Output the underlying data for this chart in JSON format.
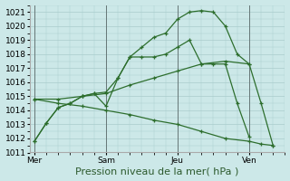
{
  "background_color": "#cce8e8",
  "grid_color": "#aacccc",
  "line_color": "#2d6e2d",
  "ylim": [
    1011,
    1021.5
  ],
  "yticks": [
    1011,
    1012,
    1013,
    1014,
    1015,
    1016,
    1017,
    1018,
    1019,
    1020,
    1021
  ],
  "xlabel": "Pression niveau de la mer( hPa )",
  "xlabel_fontsize": 8,
  "tick_fontsize": 6.5,
  "day_labels": [
    "Mer",
    "Sam",
    "Jeu",
    "Ven"
  ],
  "day_positions": [
    0,
    3,
    6,
    9
  ],
  "vline_positions": [
    0,
    3,
    6,
    9
  ],
  "xlim": [
    -0.2,
    10.5
  ],
  "series": [
    {
      "x": [
        0,
        0.5,
        1,
        1.5,
        2,
        2.5,
        3,
        3.5,
        4,
        4.5,
        5,
        5.5,
        6,
        6.5,
        7,
        7.5,
        8,
        8.5,
        9,
        9.5,
        10
      ],
      "y": [
        1011.8,
        1013.1,
        1014.2,
        1014.5,
        1015.0,
        1015.2,
        1015.3,
        1016.3,
        1017.8,
        1018.5,
        1019.2,
        1019.5,
        1020.5,
        1021.0,
        1021.1,
        1021.0,
        1020.0,
        1018.0,
        1017.3,
        1014.5,
        1011.5
      ]
    },
    {
      "x": [
        0,
        0.5,
        1,
        1.5,
        2,
        2.5,
        3,
        3.5,
        4,
        4.5,
        5,
        5.5,
        6,
        6.5,
        7,
        7.5,
        8,
        8.5,
        9
      ],
      "y": [
        1011.8,
        1013.1,
        1014.2,
        1014.5,
        1015.0,
        1015.2,
        1014.3,
        1016.3,
        1017.8,
        1017.8,
        1017.8,
        1018.0,
        1018.5,
        1019.0,
        1017.3,
        1017.3,
        1017.3,
        1014.5,
        1012.1
      ]
    },
    {
      "x": [
        0,
        1,
        2,
        3,
        4,
        5,
        6,
        7,
        8,
        9
      ],
      "y": [
        1014.8,
        1014.8,
        1015.0,
        1015.2,
        1015.8,
        1016.3,
        1016.8,
        1017.3,
        1017.5,
        1017.3
      ]
    },
    {
      "x": [
        0,
        1,
        2,
        3,
        4,
        5,
        6,
        7,
        8,
        9,
        9.5,
        10
      ],
      "y": [
        1014.8,
        1014.5,
        1014.3,
        1014.0,
        1013.7,
        1013.3,
        1013.0,
        1012.5,
        1012.0,
        1011.8,
        1011.6,
        1011.5
      ]
    }
  ]
}
